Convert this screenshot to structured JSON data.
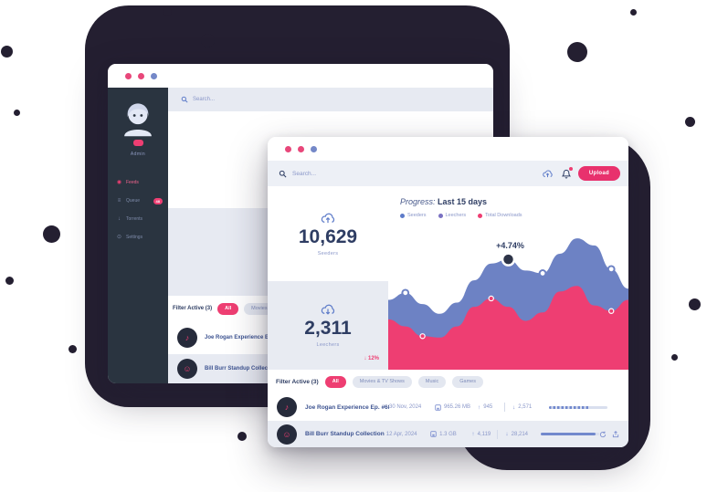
{
  "colors": {
    "accent_pink": "#ee3e72",
    "navy_text": "#2e3d63",
    "area_blue": "#6d82c4",
    "sidebar_dark": "#2a3440",
    "blob_dark": "#241f31"
  },
  "back_window": {
    "window_dots": [
      "#e8477a",
      "#e8477a",
      "#7488c8"
    ],
    "sidebar": {
      "username": "Admin",
      "pro_badge": true,
      "items": [
        {
          "label": "Feeds",
          "icon": "rss-icon",
          "active": true,
          "badge": ""
        },
        {
          "label": "Queue",
          "icon": "list-icon",
          "active": false,
          "badge": "48"
        },
        {
          "label": "Torrents",
          "icon": "download-icon",
          "active": false,
          "badge": ""
        },
        {
          "label": "Settings",
          "icon": "gear-icon",
          "active": false,
          "badge": ""
        }
      ]
    },
    "search_placeholder": "Search...",
    "stats": [
      {
        "value": "10,629",
        "label": "Seeders",
        "icon": "cloud-upload-icon"
      },
      {
        "value": "2,311",
        "label": "Leechers",
        "icon": "cloud-download-icon"
      }
    ],
    "filter_label": "Filter Active (3)",
    "filter_pills": [
      {
        "label": "All",
        "active": true
      },
      {
        "label": "Movies & TV Shows",
        "active": false
      }
    ],
    "list": [
      {
        "title": "Joe Rogan Experience Ep. #68",
        "icon": "mic-icon"
      },
      {
        "title": "Bill Burr Standup Collection",
        "icon": "face-icon"
      }
    ]
  },
  "front_window": {
    "window_dots": [
      "#e8477a",
      "#e8477a",
      "#7488c8"
    ],
    "search_placeholder": "Search...",
    "header_icons": [
      "cloud-upload-icon",
      "bell-icon"
    ],
    "upload_button": "Upload",
    "stats": [
      {
        "value": "10,629",
        "label": "Seeders",
        "icon": "cloud-upload-icon",
        "delta": ""
      },
      {
        "value": "2,311",
        "label": "Leechers",
        "icon": "cloud-download-icon",
        "delta": "↓ 12%"
      }
    ],
    "filter_label": "Filter Active (3)",
    "filter_pills": [
      {
        "label": "All",
        "active": true
      },
      {
        "label": "Movies & TV Shows",
        "active": false
      },
      {
        "label": "Music",
        "active": false
      },
      {
        "label": "Games",
        "active": false
      }
    ],
    "table_rows": [
      {
        "title": "Joe Rogan Experience Ep. #68",
        "icon": "mic-icon",
        "date": "30 Nov, 2024",
        "size": "965.26 MB",
        "up": "945",
        "down": "2,571",
        "progress": 70,
        "progress_style": "dashed",
        "actions": []
      },
      {
        "title": "Bill Burr Standup Collection",
        "icon": "face-icon",
        "date": "12 Apr, 2024",
        "size": "1.3 GB",
        "up": "4,119",
        "down": "28,214",
        "progress": 93,
        "progress_style": "solid",
        "actions": [
          "refresh-icon",
          "share-icon"
        ]
      }
    ]
  },
  "chart_data": {
    "type": "area",
    "title_prefix": "Progress:",
    "title_main": "Last 15 days",
    "legend": [
      {
        "label": "Seeders",
        "color": "#5d7bc9"
      },
      {
        "label": "Leechers",
        "color": "#7a71c2"
      },
      {
        "label": "Total Downloads",
        "color": "#ee3e72"
      }
    ],
    "x": [
      1,
      2,
      3,
      4,
      5,
      6,
      7,
      8,
      9,
      10,
      11,
      12,
      13,
      14,
      15
    ],
    "series": [
      {
        "name": "Seeders",
        "color": "#6d82c4",
        "values": [
          50,
          55,
          47,
          40,
          48,
          64,
          76,
          79,
          71,
          69,
          83,
          94,
          89,
          72,
          58
        ]
      },
      {
        "name": "Total Downloads",
        "color": "#ee3e72",
        "values": [
          36,
          31,
          24,
          23,
          31,
          45,
          51,
          45,
          35,
          41,
          56,
          60,
          46,
          42,
          50
        ]
      }
    ],
    "annotation": {
      "label": "+4.74%",
      "series": 0,
      "index": 7
    },
    "markers": {
      "rings_series": 0,
      "rings": [
        1,
        9,
        13
      ],
      "pink_dots_series": 1,
      "pink_dots": [
        2,
        6,
        13
      ]
    },
    "ylim": [
      0,
      100
    ],
    "grid": false,
    "legend_position": "top-left"
  }
}
